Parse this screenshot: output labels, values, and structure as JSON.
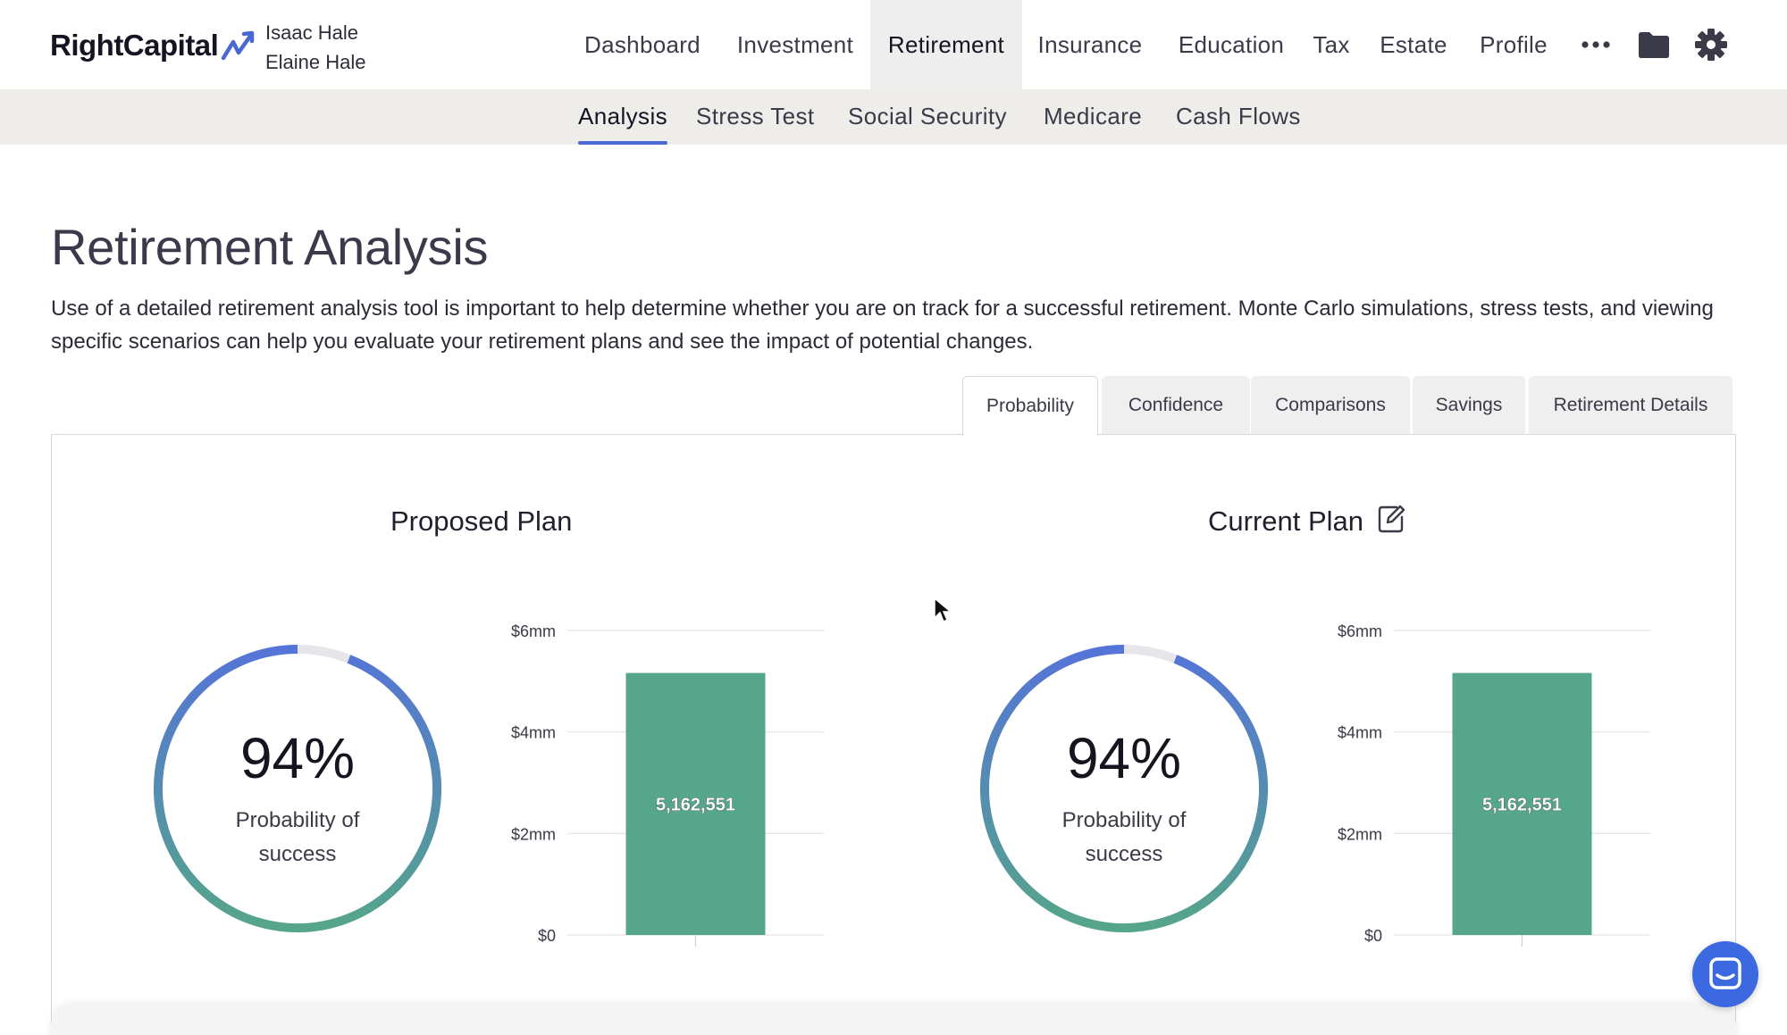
{
  "header": {
    "brand": "RightCapital",
    "clients": [
      "Isaac Hale",
      "Elaine Hale"
    ],
    "nav": [
      "Dashboard",
      "Investment",
      "Retirement",
      "Insurance",
      "Education",
      "Tax",
      "Estate",
      "Profile"
    ],
    "active_nav": "Retirement",
    "icons": [
      "more-icon",
      "folder-icon",
      "gear-icon"
    ]
  },
  "subnav": {
    "items": [
      "Analysis",
      "Stress Test",
      "Social Security",
      "Medicare",
      "Cash Flows"
    ],
    "active": "Analysis"
  },
  "page": {
    "title": "Retirement Analysis",
    "description": "Use of a detailed retirement analysis tool is important to help determine whether you are on track for a successful retirement. Monte Carlo simulations, stress tests, and viewing specific scenarios can help you evaluate your retirement plans and see the impact of potential changes."
  },
  "tabs": {
    "items": [
      "Probability",
      "Confidence",
      "Comparisons",
      "Savings",
      "Retirement Details"
    ],
    "active": "Probability"
  },
  "plans": [
    {
      "title": "Proposed Plan",
      "probability_text": "94%",
      "probability": 0.94,
      "probability_label": "Probability of success"
    },
    {
      "title": "Current Plan",
      "probability_text": "94%",
      "probability": 0.94,
      "probability_label": "Probability of success",
      "edit_icon": "edit-icon"
    }
  ],
  "colors": {
    "accent_blue": "#4a68d4",
    "gauge_start": "#5574d8",
    "gauge_end": "#55a58a",
    "bar_green": "#56a68b"
  },
  "chart_data": [
    {
      "type": "bar",
      "categories": [
        ""
      ],
      "values": [
        5162551
      ],
      "data_labels": [
        "5,162,551"
      ],
      "yticks": [
        "$0",
        "$2mm",
        "$4mm",
        "$6mm"
      ],
      "ylim": [
        0,
        6000000
      ],
      "grid": true
    },
    {
      "type": "bar",
      "categories": [
        ""
      ],
      "values": [
        5162551
      ],
      "data_labels": [
        "5,162,551"
      ],
      "yticks": [
        "$0",
        "$2mm",
        "$4mm",
        "$6mm"
      ],
      "ylim": [
        0,
        6000000
      ],
      "grid": true
    }
  ]
}
